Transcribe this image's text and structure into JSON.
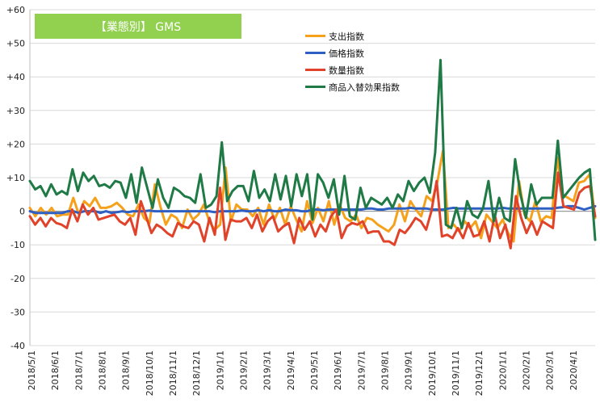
{
  "chart_data": {
    "type": "line",
    "title": "【業態別】 GMS",
    "ylim": [
      -40,
      60
    ],
    "y_ticks": [
      "-40",
      "-30",
      "-20",
      "-10",
      "0",
      "+10",
      "+20",
      "+30",
      "+40",
      "+50",
      "+60"
    ],
    "grid": "horizontal",
    "legend_position": "top-center",
    "x_labels": [
      "2018/5/1",
      "2018/6/1",
      "2018/7/1",
      "2018/8/1",
      "2018/9/1",
      "2018/10/1",
      "2018/11/1",
      "2018/12/1",
      "2019/1/1",
      "2019/2/1",
      "2019/3/1",
      "2019/4/1",
      "2019/5/1",
      "2019/6/1",
      "2019/7/1",
      "2019/8/1",
      "2019/9/1",
      "2019/10/1",
      "2019/11/1",
      "2019/12/1",
      "2020/1/1",
      "2020/2/1",
      "2020/3/1",
      "2020/4/1"
    ],
    "series": [
      {
        "name": "支出指数",
        "color": "#f5a11c",
        "values": [
          1.0,
          -1.5,
          1.0,
          -1.0,
          1.0,
          -1.5,
          -1.0,
          -1.0,
          4.0,
          -1.0,
          3.0,
          1.5,
          4.0,
          1.0,
          1.0,
          1.5,
          2.5,
          1.0,
          -1.0,
          -1.5,
          2.0,
          -2.0,
          -3.5,
          8.0,
          1.5,
          -4.0,
          -1.0,
          -2.0,
          -5.0,
          0.5,
          -2.5,
          -1.0,
          2.0,
          -3.0,
          -5.5,
          -4.0,
          13.0,
          -3.0,
          2.0,
          0.5,
          0.5,
          -1.5,
          1.0,
          -4.0,
          2.0,
          -2.5,
          1.0,
          -4.0,
          1.5,
          -2.5,
          -6.0,
          3.0,
          -3.5,
          1.0,
          -3.0,
          3.0,
          -4.0,
          2.0,
          -2.0,
          -3.0,
          -1.0,
          -5.0,
          -2.0,
          -2.5,
          -4.0,
          -5.0,
          -6.0,
          -4.0,
          2.0,
          -3.0,
          3.0,
          0.5,
          -1.5,
          4.5,
          3.0,
          9.0,
          18.0,
          -5.0,
          -4.0,
          -6.0,
          -3.0,
          -5.0,
          -3.0,
          -8.0,
          -1.0,
          -3.0,
          -5.0,
          -2.5,
          -6.5,
          -9.0,
          9.0,
          -1.0,
          -3.0,
          3.0,
          -3.0,
          -1.5,
          -2.0,
          16.0,
          5.0,
          4.0,
          3.0,
          8.5,
          9.0,
          11.0,
          -2.0
        ]
      },
      {
        "name": "価格指数",
        "color": "#2e5fc2",
        "values": [
          0.0,
          -0.5,
          -0.5,
          -0.5,
          -0.5,
          -0.5,
          -0.5,
          0.0,
          0.0,
          -0.5,
          0.0,
          0.0,
          0.0,
          -0.5,
          0.0,
          -0.5,
          -0.3,
          0.0,
          -0.3,
          0.0,
          0.0,
          0.0,
          0.2,
          0.0,
          0.0,
          0.0,
          0.0,
          0.0,
          0.0,
          0.0,
          0.0,
          0.0,
          0.0,
          0.0,
          -0.3,
          0.0,
          0.0,
          0.0,
          0.0,
          0.2,
          0.0,
          0.0,
          0.3,
          0.0,
          0.3,
          0.0,
          0.0,
          0.5,
          0.3,
          0.3,
          0.0,
          0.0,
          0.5,
          0.5,
          0.3,
          0.5,
          0.5,
          0.5,
          0.5,
          0.5,
          0.5,
          0.5,
          0.8,
          0.8,
          0.5,
          0.5,
          0.8,
          0.8,
          0.8,
          0.8,
          1.0,
          0.8,
          0.8,
          0.8,
          0.5,
          0.5,
          0.5,
          0.8,
          1.0,
          0.8,
          0.8,
          0.8,
          0.8,
          0.8,
          0.8,
          0.8,
          0.8,
          1.0,
          0.8,
          0.8,
          0.8,
          0.8,
          0.8,
          0.8,
          0.8,
          0.8,
          0.8,
          1.0,
          1.2,
          1.5,
          1.5,
          1.0,
          0.5,
          1.0,
          1.5
        ]
      },
      {
        "name": "数量指数",
        "color": "#e0432a",
        "values": [
          -1.5,
          -4.0,
          -2.0,
          -4.5,
          -2.0,
          -3.5,
          -4.0,
          -5.0,
          0.5,
          -3.0,
          2.0,
          -1.0,
          1.0,
          -2.5,
          -2.0,
          -1.5,
          -1.0,
          -3.0,
          -4.0,
          -2.0,
          -7.0,
          3.0,
          -1.5,
          -6.5,
          -4.0,
          -5.0,
          -6.5,
          -7.5,
          -3.5,
          -4.5,
          -5.0,
          -3.0,
          -4.0,
          -9.0,
          -2.0,
          -7.0,
          7.0,
          -8.5,
          -2.5,
          -3.0,
          -3.0,
          -2.0,
          -5.0,
          -1.0,
          -6.0,
          -3.0,
          -1.5,
          -6.0,
          -4.5,
          -3.5,
          -9.5,
          -2.0,
          -5.5,
          -3.0,
          -7.5,
          -4.0,
          -6.0,
          -1.5,
          0.5,
          -8.0,
          -4.5,
          -3.5,
          -4.0,
          -3.0,
          -6.5,
          -6.0,
          -6.0,
          -9.0,
          -9.0,
          -10.0,
          -5.5,
          -6.5,
          -4.5,
          -2.0,
          -3.0,
          -5.5,
          0.0,
          9.0,
          -7.5,
          -7.0,
          -8.0,
          -5.0,
          -8.0,
          -3.5,
          -7.5,
          -7.0,
          -3.0,
          -9.0,
          -1.0,
          -8.0,
          -4.0,
          -11.0,
          4.5,
          -2.0,
          -6.5,
          -3.0,
          -7.0,
          -3.0,
          -4.0,
          -5.0,
          11.5,
          1.5,
          1.0,
          0.5,
          5.5,
          7.0,
          7.5,
          -1.5
        ]
      },
      {
        "name": "商品入替効果指数",
        "color": "#1f7a45",
        "values": [
          9.0,
          6.5,
          7.5,
          4.5,
          8.0,
          5.0,
          6.0,
          5.0,
          12.5,
          6.0,
          11.5,
          9.0,
          10.5,
          7.5,
          8.0,
          7.0,
          9.0,
          8.5,
          4.0,
          11.0,
          2.5,
          13.0,
          7.0,
          1.0,
          9.5,
          4.0,
          1.0,
          7.0,
          6.0,
          4.5,
          4.0,
          2.5,
          11.0,
          1.0,
          2.0,
          4.5,
          20.5,
          3.0,
          6.0,
          7.5,
          7.5,
          3.0,
          12.0,
          4.0,
          6.5,
          3.0,
          11.0,
          3.5,
          10.5,
          1.5,
          11.0,
          4.5,
          11.0,
          -2.5,
          11.0,
          8.5,
          4.0,
          9.5,
          -1.0,
          10.5,
          -1.5,
          -2.5,
          7.0,
          1.0,
          4.0,
          3.0,
          2.0,
          4.0,
          1.0,
          5.0,
          3.0,
          9.0,
          6.0,
          8.5,
          10.0,
          5.5,
          17.5,
          45.0,
          -4.0,
          -5.0,
          1.0,
          -5.0,
          3.0,
          -1.0,
          -2.0,
          1.0,
          9.0,
          -3.0,
          4.0,
          -2.0,
          -3.0,
          15.5,
          5.0,
          -2.0,
          8.0,
          2.0,
          4.0,
          4.0,
          4.0,
          21.0,
          4.0,
          6.0,
          8.0,
          10.0,
          11.5,
          12.5,
          -8.5
        ]
      }
    ]
  },
  "title_box": {
    "text": "【業態別】 GMS",
    "color": "#92d050"
  }
}
